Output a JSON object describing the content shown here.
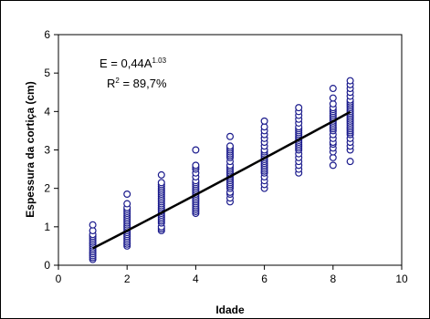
{
  "chart_data": {
    "type": "scatter",
    "title": "",
    "xlabel": "Idade",
    "ylabel": "Espessura da cortiça (cm)",
    "xlim": [
      0,
      10
    ],
    "ylim": [
      0,
      6
    ],
    "x_ticks": [
      "0",
      "2",
      "4",
      "6",
      "8",
      "10"
    ],
    "y_ticks": [
      "0",
      "1",
      "2",
      "3",
      "4",
      "5",
      "6"
    ],
    "grid": false,
    "legend": "none",
    "marker_color": "#1a1a8c",
    "line_color": "#000000",
    "annotation": {
      "equation_prefix": "E = 0,44A",
      "equation_exponent": "1.03",
      "r2_prefix": "R",
      "r2_exponent": "2",
      "r2_value": " = 89,7%"
    },
    "fit": {
      "a": 0.44,
      "b": 1.03,
      "x_range": [
        1,
        8.5
      ]
    },
    "series": [
      {
        "x": 1,
        "values": [
          0.15,
          0.2,
          0.25,
          0.3,
          0.35,
          0.4,
          0.45,
          0.5,
          0.55,
          0.6,
          0.65,
          0.7,
          0.75,
          0.8,
          0.9,
          1.05
        ]
      },
      {
        "x": 2,
        "values": [
          0.5,
          0.55,
          0.6,
          0.65,
          0.7,
          0.75,
          0.8,
          0.85,
          0.9,
          0.95,
          1.0,
          1.05,
          1.1,
          1.15,
          1.2,
          1.25,
          1.3,
          1.35,
          1.4,
          1.45,
          1.5,
          1.6,
          1.85
        ]
      },
      {
        "x": 3,
        "values": [
          0.9,
          0.95,
          1.0,
          1.1,
          1.15,
          1.2,
          1.25,
          1.3,
          1.35,
          1.4,
          1.45,
          1.5,
          1.55,
          1.6,
          1.65,
          1.7,
          1.75,
          1.8,
          1.85,
          1.9,
          1.95,
          2.0,
          2.05,
          2.1,
          2.15,
          2.35
        ]
      },
      {
        "x": 4,
        "values": [
          1.35,
          1.4,
          1.45,
          1.5,
          1.55,
          1.6,
          1.65,
          1.7,
          1.75,
          1.8,
          1.85,
          1.9,
          1.95,
          2.0,
          2.05,
          2.1,
          2.15,
          2.2,
          2.3,
          2.4,
          2.5,
          2.55,
          2.6,
          3.0
        ]
      },
      {
        "x": 5,
        "values": [
          1.65,
          1.75,
          1.85,
          1.9,
          2.0,
          2.05,
          2.1,
          2.15,
          2.2,
          2.25,
          2.3,
          2.35,
          2.4,
          2.45,
          2.5,
          2.55,
          2.6,
          2.7,
          2.8,
          2.85,
          2.9,
          2.95,
          3.0,
          3.05,
          3.1,
          3.35
        ]
      },
      {
        "x": 6,
        "values": [
          2.0,
          2.1,
          2.2,
          2.3,
          2.4,
          2.45,
          2.5,
          2.55,
          2.6,
          2.65,
          2.7,
          2.75,
          2.8,
          2.85,
          2.9,
          2.95,
          3.0,
          3.1,
          3.2,
          3.3,
          3.4,
          3.5,
          3.6,
          3.75
        ]
      },
      {
        "x": 7,
        "values": [
          2.4,
          2.5,
          2.6,
          2.7,
          2.8,
          2.9,
          3.0,
          3.05,
          3.1,
          3.15,
          3.2,
          3.25,
          3.3,
          3.35,
          3.4,
          3.45,
          3.5,
          3.55,
          3.6,
          3.7,
          3.8,
          3.9,
          4.0,
          4.1
        ]
      },
      {
        "x": 8,
        "values": [
          2.6,
          2.8,
          2.95,
          3.05,
          3.15,
          3.2,
          3.3,
          3.4,
          3.5,
          3.55,
          3.6,
          3.65,
          3.7,
          3.75,
          3.8,
          3.85,
          3.9,
          3.95,
          4.0,
          4.05,
          4.1,
          4.2,
          4.35,
          4.6
        ]
      },
      {
        "x": 8.5,
        "values": [
          2.7,
          3.0,
          3.1,
          3.2,
          3.3,
          3.4,
          3.45,
          3.5,
          3.55,
          3.6,
          3.65,
          3.7,
          3.75,
          3.8,
          3.85,
          3.9,
          3.95,
          4.0,
          4.05,
          4.1,
          4.15,
          4.2,
          4.25,
          4.3,
          4.4,
          4.5,
          4.6,
          4.7,
          4.8
        ]
      }
    ]
  }
}
